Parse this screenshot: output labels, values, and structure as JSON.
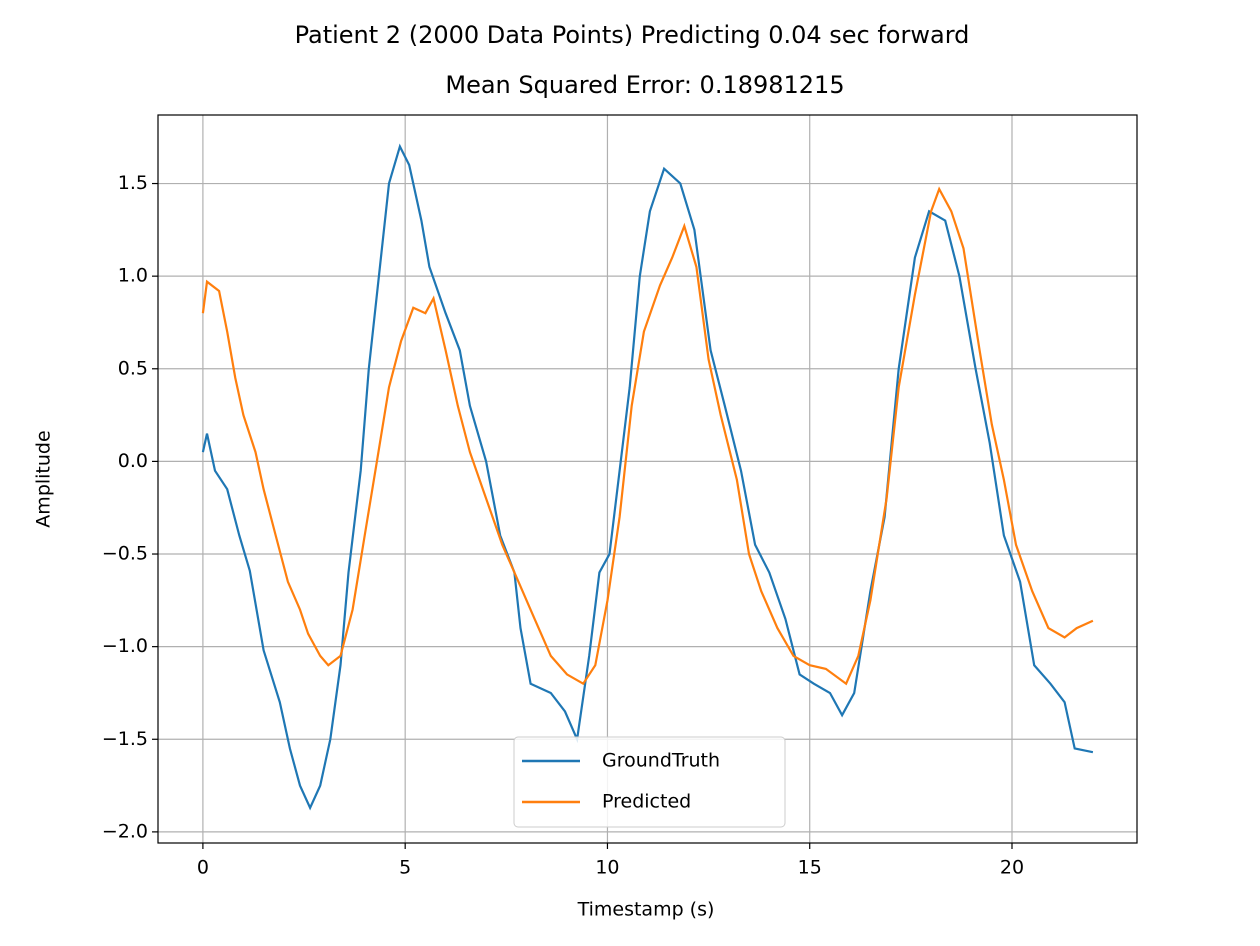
{
  "chart_data": {
    "type": "line",
    "title": "Patient 2 (2000 Data Points) Predicting 0.04 sec forward",
    "subtitle": "Mean Squared Error: 0.18981215",
    "x_label": "Timestamp (s)",
    "y_label": "Amplitude",
    "xlim": [
      -1.11,
      23.09
    ],
    "ylim": [
      -2.06,
      1.87
    ],
    "xticks": [
      0,
      5,
      10,
      15,
      20
    ],
    "yticks": [
      {
        "value": -2.0,
        "label": "−2.0"
      },
      {
        "value": -1.5,
        "label": "−1.5"
      },
      {
        "value": -1.0,
        "label": "−1.0"
      },
      {
        "value": -0.5,
        "label": "−0.5"
      },
      {
        "value": 0.0,
        "label": "0.0"
      },
      0.5,
      {
        "value": 1.0,
        "label": "1.0"
      },
      1.5
    ],
    "grid": true,
    "legend": "lower center",
    "series": [
      {
        "name": "GroundTruth",
        "color": "#1f77b4",
        "x": [
          0,
          0.1,
          0.3,
          0.6,
          0.9,
          1.16,
          1.5,
          1.9,
          2.15,
          2.4,
          2.65,
          2.9,
          3.15,
          3.4,
          3.6,
          3.9,
          4.1,
          4.35,
          4.6,
          4.87,
          5.1,
          5.4,
          5.6,
          6.0,
          6.35,
          6.6,
          7.0,
          7.35,
          7.7,
          7.85,
          8.1,
          8.6,
          8.95,
          9.25,
          9.55,
          9.8,
          10.05,
          10.3,
          10.55,
          10.8,
          11.05,
          11.4,
          11.8,
          12.15,
          12.55,
          12.9,
          13.3,
          13.65,
          14.0,
          14.4,
          14.75,
          15.1,
          15.5,
          15.8,
          16.1,
          16.5,
          16.85,
          17.2,
          17.6,
          17.95,
          18.35,
          18.7,
          19.1,
          19.45,
          19.8,
          20.2,
          20.55,
          20.95,
          21.3,
          21.55,
          22.0
        ],
        "values": [
          0.05,
          0.15,
          -0.05,
          -0.15,
          -0.4,
          -0.59,
          -1.02,
          -1.3,
          -1.55,
          -1.75,
          -1.87,
          -1.75,
          -1.5,
          -1.1,
          -0.6,
          -0.05,
          0.5,
          1.0,
          1.5,
          1.7,
          1.6,
          1.3,
          1.05,
          0.8,
          0.6,
          0.3,
          0.0,
          -0.4,
          -0.6,
          -0.9,
          -1.2,
          -1.25,
          -1.35,
          -1.5,
          -1.05,
          -0.6,
          -0.5,
          -0.05,
          0.4,
          1.0,
          1.35,
          1.58,
          1.5,
          1.25,
          0.6,
          0.3,
          -0.05,
          -0.45,
          -0.6,
          -0.85,
          -1.15,
          -1.2,
          -1.25,
          -1.37,
          -1.25,
          -0.7,
          -0.3,
          0.5,
          1.1,
          1.35,
          1.3,
          1.0,
          0.5,
          0.1,
          -0.4,
          -0.65,
          -1.1,
          -1.2,
          -1.3,
          -1.55,
          -1.57
        ]
      },
      {
        "name": "Predicted",
        "color": "#ff7f0e",
        "x": [
          0,
          0.1,
          0.4,
          0.6,
          0.8,
          1.0,
          1.3,
          1.5,
          1.8,
          2.1,
          2.4,
          2.6,
          2.9,
          3.1,
          3.4,
          3.7,
          4.0,
          4.3,
          4.6,
          4.9,
          5.2,
          5.5,
          5.7,
          6.0,
          6.3,
          6.6,
          7.0,
          7.4,
          7.8,
          8.2,
          8.6,
          9.0,
          9.4,
          9.7,
          10.0,
          10.3,
          10.6,
          10.9,
          11.3,
          11.6,
          11.9,
          12.2,
          12.5,
          12.8,
          13.2,
          13.5,
          13.8,
          14.2,
          14.6,
          15.0,
          15.4,
          15.9,
          16.2,
          16.5,
          16.9,
          17.2,
          17.6,
          18.0,
          18.2,
          18.5,
          18.8,
          19.2,
          19.5,
          19.8,
          20.1,
          20.5,
          20.9,
          21.3,
          21.6,
          22.0
        ],
        "values": [
          0.8,
          0.97,
          0.92,
          0.7,
          0.45,
          0.25,
          0.05,
          -0.15,
          -0.4,
          -0.65,
          -0.8,
          -0.93,
          -1.05,
          -1.1,
          -1.05,
          -0.8,
          -0.4,
          0.0,
          0.4,
          0.65,
          0.83,
          0.8,
          0.88,
          0.6,
          0.3,
          0.05,
          -0.2,
          -0.45,
          -0.65,
          -0.85,
          -1.05,
          -1.15,
          -1.2,
          -1.1,
          -0.75,
          -0.3,
          0.3,
          0.7,
          0.95,
          1.1,
          1.27,
          1.05,
          0.55,
          0.25,
          -0.1,
          -0.5,
          -0.7,
          -0.9,
          -1.05,
          -1.1,
          -1.12,
          -1.2,
          -1.05,
          -0.75,
          -0.2,
          0.4,
          0.9,
          1.35,
          1.47,
          1.35,
          1.15,
          0.6,
          0.2,
          -0.1,
          -0.45,
          -0.7,
          -0.9,
          -0.95,
          -0.9,
          -0.86
        ]
      }
    ]
  }
}
